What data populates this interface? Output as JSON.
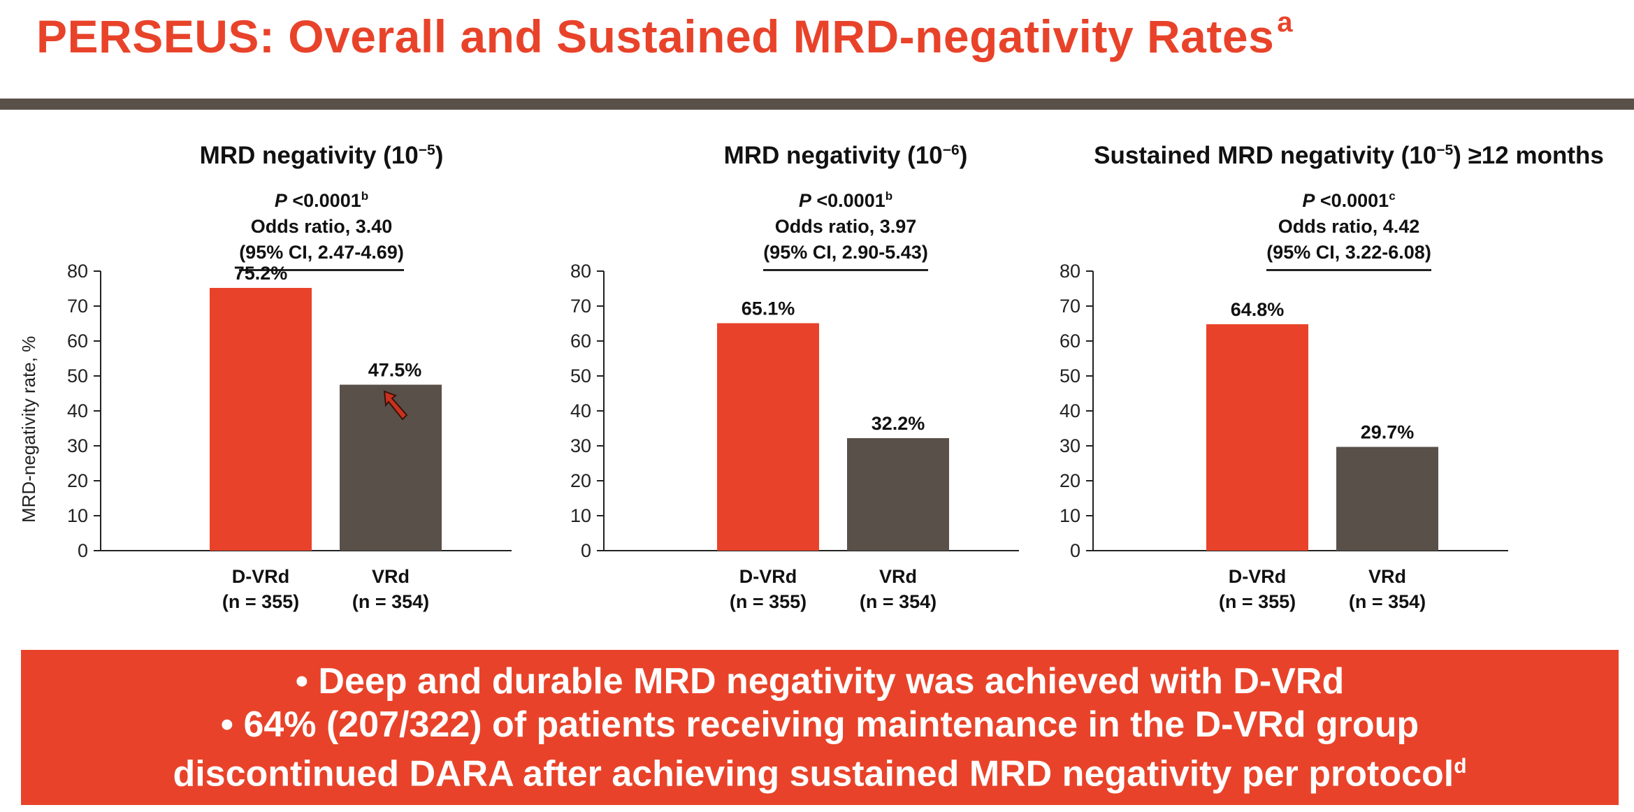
{
  "slide": {
    "title": "PERSEUS: Overall and Sustained MRD-negativity Rates",
    "title_sup": "a",
    "ylabel": "MRD-negativity rate, %",
    "banner": {
      "bullet1": "•  Deep and durable MRD negativity was achieved with D-VRd",
      "bullet2": "•  64% (207/322) of patients receiving maintenance in the D-VRd group",
      "bullet3": "discontinued DARA after achieving sustained MRD negativity per protocol",
      "bullet3_sup": "d"
    }
  },
  "colors": {
    "accent": "#e8432a",
    "dvrd_bar": "#e8432a",
    "vrd_bar": "#5a504a",
    "rule": "#5a504a"
  },
  "icons": {
    "cursor": "pointer-arrow-icon"
  },
  "chart_data": [
    {
      "type": "bar",
      "title": "MRD negativity (10",
      "title_exp": "−5",
      "title_tail": ")",
      "p_value_label": "P",
      "p_value": " <0.0001",
      "p_sup": "b",
      "odds_ratio": "Odds ratio, 3.40",
      "ci": "(95% CI, 2.47-4.69)",
      "categories": [
        "D-VRd",
        "VRd"
      ],
      "n_labels": [
        "(n = 355)",
        "(n = 354)"
      ],
      "values": [
        75.2,
        47.5
      ],
      "value_labels": [
        "75.2%",
        "47.5%"
      ],
      "ylabel": "MRD-negativity rate, %",
      "ylim": [
        0,
        80
      ],
      "yticks": [
        0,
        10,
        20,
        30,
        40,
        50,
        60,
        70,
        80
      ]
    },
    {
      "type": "bar",
      "title": "MRD negativity (10",
      "title_exp": "−6",
      "title_tail": ")",
      "p_value_label": "P",
      "p_value": " <0.0001",
      "p_sup": "b",
      "odds_ratio": "Odds ratio, 3.97",
      "ci": "(95% CI, 2.90-5.43)",
      "categories": [
        "D-VRd",
        "VRd"
      ],
      "n_labels": [
        "(n = 355)",
        "(n = 354)"
      ],
      "values": [
        65.1,
        32.2
      ],
      "value_labels": [
        "65.1%",
        "32.2%"
      ],
      "ylim": [
        0,
        80
      ],
      "yticks": [
        0,
        10,
        20,
        30,
        40,
        50,
        60,
        70,
        80
      ]
    },
    {
      "type": "bar",
      "title": "Sustained MRD negativity (10",
      "title_exp": "−5",
      "title_tail": ") ≥12 months",
      "p_value_label": "P",
      "p_value": " <0.0001",
      "p_sup": "c",
      "odds_ratio": "Odds ratio, 4.42",
      "ci": "(95% CI, 3.22-6.08)",
      "categories": [
        "D-VRd",
        "VRd"
      ],
      "n_labels": [
        "(n = 355)",
        "(n = 354)"
      ],
      "values": [
        64.8,
        29.7
      ],
      "value_labels": [
        "64.8%",
        "29.7%"
      ],
      "ylim": [
        0,
        80
      ],
      "yticks": [
        0,
        10,
        20,
        30,
        40,
        50,
        60,
        70,
        80
      ]
    }
  ]
}
